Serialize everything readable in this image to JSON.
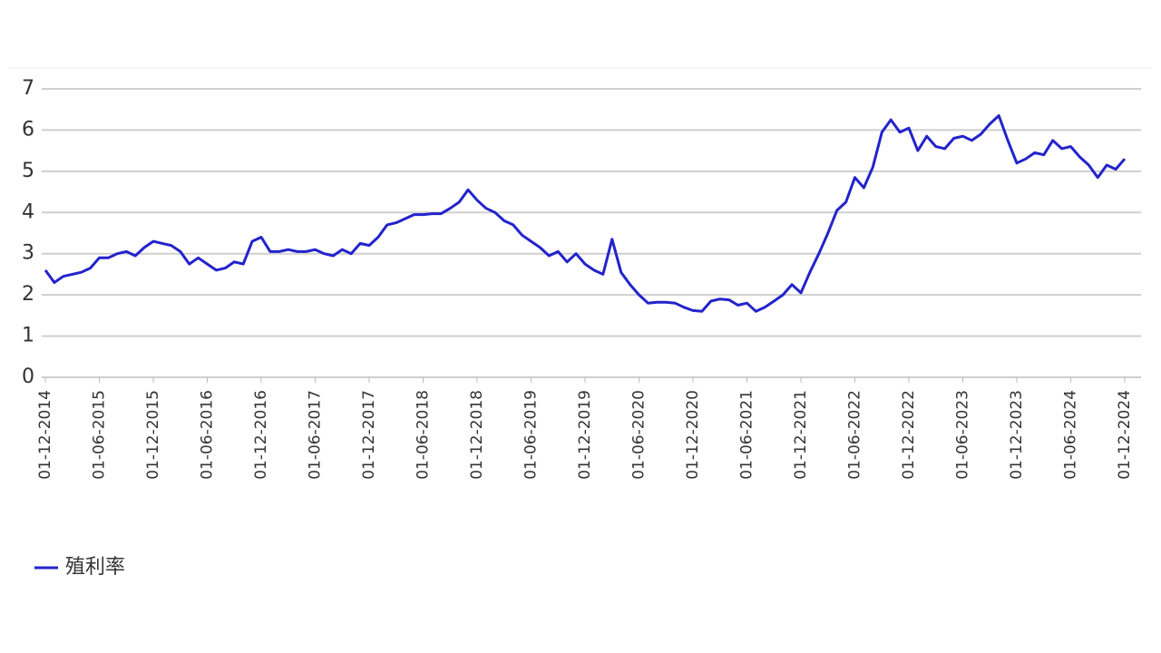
{
  "chart_data": {
    "type": "line",
    "categories": [
      "01-12-2014",
      null,
      null,
      null,
      null,
      null,
      "01-06-2015",
      null,
      null,
      null,
      null,
      null,
      "01-12-2015",
      null,
      null,
      null,
      null,
      null,
      "01-06-2016",
      null,
      null,
      null,
      null,
      null,
      "01-12-2016",
      null,
      null,
      null,
      null,
      null,
      "01-06-2017",
      null,
      null,
      null,
      null,
      null,
      "01-12-2017",
      null,
      null,
      null,
      null,
      null,
      "01-06-2018",
      null,
      null,
      null,
      null,
      null,
      "01-12-2018",
      null,
      null,
      null,
      null,
      null,
      "01-06-2019",
      null,
      null,
      null,
      null,
      null,
      "01-12-2019",
      null,
      null,
      null,
      null,
      null,
      "01-06-2020",
      null,
      null,
      null,
      null,
      null,
      "01-12-2020",
      null,
      null,
      null,
      null,
      null,
      "01-06-2021",
      null,
      null,
      null,
      null,
      null,
      "01-12-2021",
      null,
      null,
      null,
      null,
      null,
      "01-06-2022",
      null,
      null,
      null,
      null,
      null,
      "01-12-2022",
      null,
      null,
      null,
      null,
      null,
      "01-06-2023",
      null,
      null,
      null,
      null,
      null,
      "01-12-2023",
      null,
      null,
      null,
      null,
      null,
      "01-06-2024",
      null,
      null,
      null,
      null,
      null,
      "01-12-2024"
    ],
    "series": [
      {
        "name": "殖利率",
        "color": "#2323cc",
        "values": [
          2.6,
          2.3,
          2.45,
          2.5,
          2.55,
          2.65,
          2.9,
          2.9,
          3.0,
          3.05,
          2.95,
          3.15,
          3.3,
          3.25,
          3.2,
          3.05,
          2.75,
          2.9,
          2.75,
          2.6,
          2.65,
          2.8,
          2.75,
          3.3,
          3.4,
          3.05,
          3.05,
          3.1,
          3.05,
          3.05,
          3.1,
          3.0,
          2.95,
          3.1,
          3.0,
          3.25,
          3.2,
          3.4,
          3.7,
          3.75,
          3.85,
          3.95,
          3.95,
          3.97,
          3.97,
          4.1,
          4.25,
          4.55,
          4.3,
          4.1,
          4.0,
          3.8,
          3.7,
          3.45,
          3.3,
          3.15,
          2.95,
          3.05,
          2.8,
          3.0,
          2.75,
          2.6,
          2.5,
          3.35,
          2.55,
          2.25,
          2.0,
          1.8,
          1.82,
          1.82,
          1.8,
          1.7,
          1.62,
          1.6,
          1.85,
          1.9,
          1.88,
          1.75,
          1.8,
          1.6,
          1.7,
          1.85,
          2.0,
          2.25,
          2.05,
          2.55,
          3.0,
          3.5,
          4.05,
          4.25,
          4.85,
          4.6,
          5.1,
          5.95,
          6.25,
          5.95,
          6.05,
          5.5,
          5.85,
          5.6,
          5.55,
          5.8,
          5.85,
          5.75,
          5.9,
          6.15,
          6.35,
          5.75,
          5.2,
          5.3,
          5.45,
          5.4,
          5.75,
          5.55,
          5.6,
          5.35,
          5.15,
          4.85,
          5.15,
          5.05,
          5.3
        ]
      }
    ],
    "ylim": [
      0,
      7
    ],
    "yticks": [
      0,
      1,
      2,
      3,
      4,
      5,
      6,
      7
    ],
    "grid": true,
    "legend": "bottom-left"
  }
}
